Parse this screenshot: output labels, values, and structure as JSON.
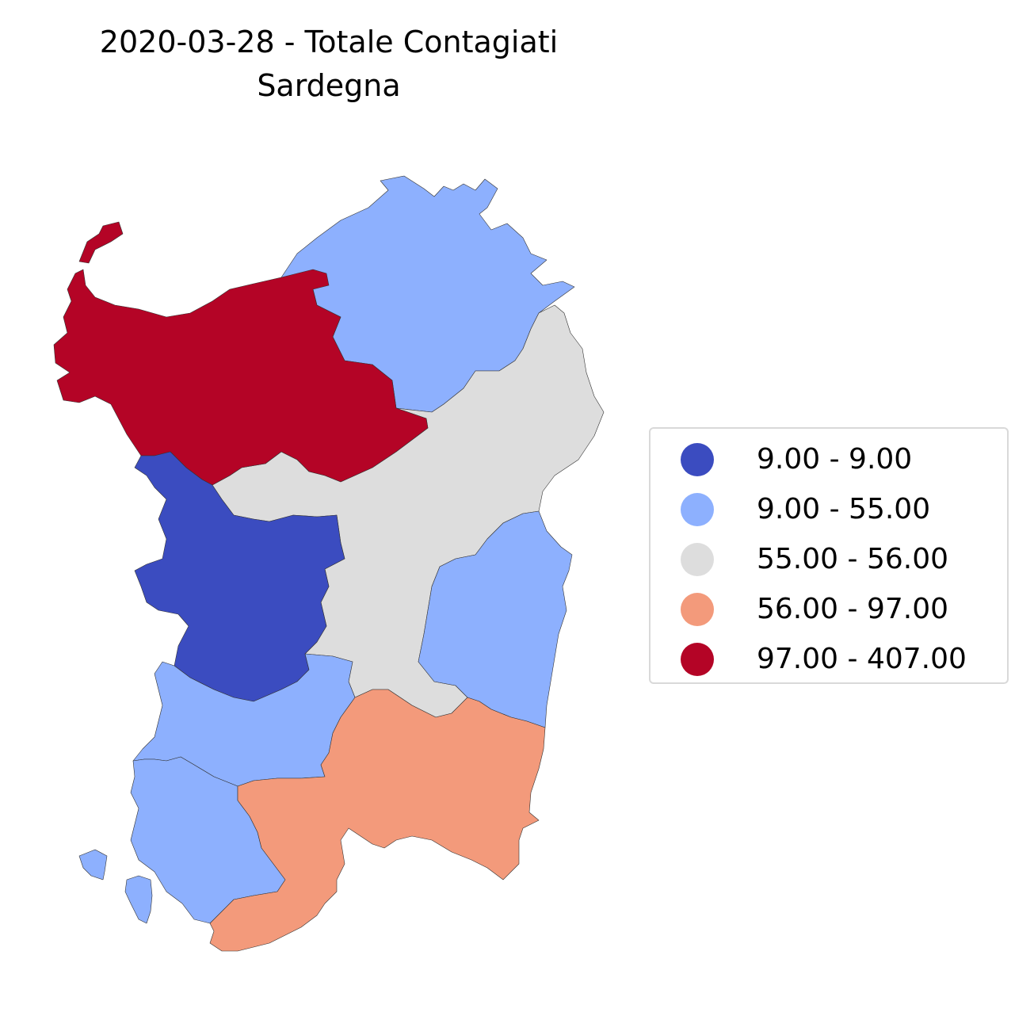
{
  "title": {
    "line1": "2020-03-28 - Totale Contagiati",
    "line2": "Sardegna"
  },
  "legend": {
    "items": [
      {
        "label": "9.00 - 9.00",
        "color": "#3b4cc0"
      },
      {
        "label": "9.00 - 55.00",
        "color": "#8db0fe"
      },
      {
        "label": "55.00 - 56.00",
        "color": "#dddddd"
      },
      {
        "label": "56.00 - 97.00",
        "color": "#f39a7b"
      },
      {
        "label": "97.00 - 407.00",
        "color": "#b40426"
      }
    ]
  },
  "regions": [
    {
      "name": "Sassari",
      "class": 4
    },
    {
      "name": "Olbia-Tempio",
      "class": 1
    },
    {
      "name": "Nuoro",
      "class": 2
    },
    {
      "name": "Oristano",
      "class": 0
    },
    {
      "name": "Ogliastra",
      "class": 1
    },
    {
      "name": "Medio Campidano",
      "class": 1
    },
    {
      "name": "Carbonia-Iglesias",
      "class": 1
    },
    {
      "name": "Cagliari",
      "class": 3
    }
  ]
}
